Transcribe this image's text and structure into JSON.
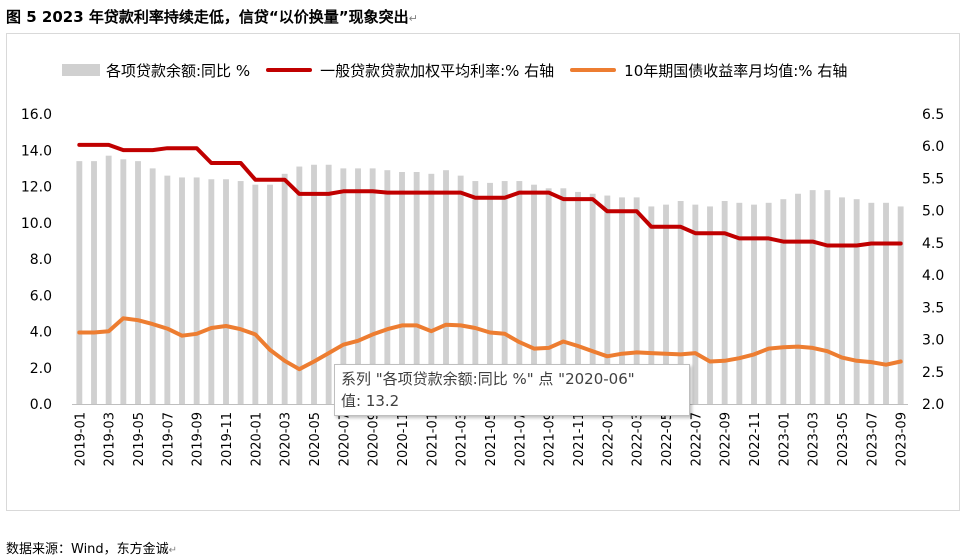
{
  "figure": {
    "title": "图 5  2023 年贷款利率持续走低，信贷“以价换量”现象突出",
    "para_mark": "↵",
    "source": "数据来源：Wind，东方金诚"
  },
  "tooltip": {
    "line1": "系列 \"各项贷款余额:同比 %\" 点 \"2020-06\"",
    "line2": "值: 13.2"
  },
  "chart_data": {
    "type": "bar",
    "x_tick_labels": [
      "2019-01",
      "2019-03",
      "2019-05",
      "2019-07",
      "2019-09",
      "2019-11",
      "2020-01",
      "2020-03",
      "2020-05",
      "2020-07",
      "2020-09",
      "2020-11",
      "2021-01",
      "2021-03",
      "2021-05",
      "2021-07",
      "2021-09",
      "2021-11",
      "2022-01",
      "2022-03",
      "2022-05",
      "2022-07",
      "2022-09",
      "2022-11",
      "2023-01",
      "2023-03",
      "2023-05",
      "2023-07",
      "2023-09"
    ],
    "categories": [
      "2019-01",
      "2019-02",
      "2019-03",
      "2019-04",
      "2019-05",
      "2019-06",
      "2019-07",
      "2019-08",
      "2019-09",
      "2019-10",
      "2019-11",
      "2019-12",
      "2020-01",
      "2020-02",
      "2020-03",
      "2020-04",
      "2020-05",
      "2020-06",
      "2020-07",
      "2020-08",
      "2020-09",
      "2020-10",
      "2020-11",
      "2020-12",
      "2021-01",
      "2021-02",
      "2021-03",
      "2021-04",
      "2021-05",
      "2021-06",
      "2021-07",
      "2021-08",
      "2021-09",
      "2021-10",
      "2021-11",
      "2021-12",
      "2022-01",
      "2022-02",
      "2022-03",
      "2022-04",
      "2022-05",
      "2022-06",
      "2022-07",
      "2022-08",
      "2022-09",
      "2022-10",
      "2022-11",
      "2022-12",
      "2023-01",
      "2023-02",
      "2023-03",
      "2023-04",
      "2023-05",
      "2023-06",
      "2023-07",
      "2023-08",
      "2023-09"
    ],
    "y_left": {
      "min": 0,
      "max": 16,
      "step": 2,
      "decimals": 1
    },
    "y_right": {
      "min": 2.0,
      "max": 6.5,
      "step": 0.5,
      "decimals": 1
    },
    "series": [
      {
        "name": "各项贷款余额:同比 %",
        "type": "bar",
        "axis": "left",
        "color": "#d0d0d0",
        "values": [
          13.4,
          13.4,
          13.7,
          13.5,
          13.4,
          13.0,
          12.6,
          12.5,
          12.5,
          12.4,
          12.4,
          12.3,
          12.1,
          12.1,
          12.7,
          13.1,
          13.2,
          13.2,
          13.0,
          13.0,
          13.0,
          12.9,
          12.8,
          12.8,
          12.7,
          12.9,
          12.6,
          12.3,
          12.2,
          12.3,
          12.3,
          12.1,
          11.9,
          11.9,
          11.7,
          11.6,
          11.5,
          11.4,
          11.4,
          10.9,
          11.0,
          11.2,
          11.0,
          10.9,
          11.2,
          11.1,
          11.0,
          11.1,
          11.3,
          11.6,
          11.8,
          11.8,
          11.4,
          11.3,
          11.1,
          11.1,
          10.9
        ]
      },
      {
        "name": "一般贷款贷款加权平均利率:% 右轴",
        "type": "line",
        "axis": "right",
        "color": "#c00000",
        "points": [
          [
            "2019-01",
            6.02
          ],
          [
            "2019-03",
            6.02
          ],
          [
            "2019-04",
            5.94
          ],
          [
            "2019-06",
            5.94
          ],
          [
            "2019-07",
            5.97
          ],
          [
            "2019-09",
            5.97
          ],
          [
            "2019-10",
            5.74
          ],
          [
            "2019-12",
            5.74
          ],
          [
            "2020-01",
            5.48
          ],
          [
            "2020-03",
            5.48
          ],
          [
            "2020-04",
            5.26
          ],
          [
            "2020-06",
            5.26
          ],
          [
            "2020-07",
            5.3
          ],
          [
            "2020-09",
            5.3
          ],
          [
            "2020-10",
            5.28
          ],
          [
            "2020-12",
            5.28
          ],
          [
            "2021-01",
            5.28
          ],
          [
            "2021-03",
            5.28
          ],
          [
            "2021-04",
            5.2
          ],
          [
            "2021-06",
            5.2
          ],
          [
            "2021-07",
            5.28
          ],
          [
            "2021-09",
            5.28
          ],
          [
            "2021-10",
            5.18
          ],
          [
            "2021-12",
            5.18
          ],
          [
            "2022-01",
            4.99
          ],
          [
            "2022-03",
            4.99
          ],
          [
            "2022-04",
            4.75
          ],
          [
            "2022-06",
            4.75
          ],
          [
            "2022-07",
            4.65
          ],
          [
            "2022-09",
            4.65
          ],
          [
            "2022-10",
            4.57
          ],
          [
            "2022-12",
            4.57
          ],
          [
            "2023-01",
            4.52
          ],
          [
            "2023-03",
            4.52
          ],
          [
            "2023-04",
            4.46
          ],
          [
            "2023-06",
            4.46
          ],
          [
            "2023-07",
            4.49
          ],
          [
            "2023-09",
            4.49
          ]
        ]
      },
      {
        "name": "10年期国债收益率月均值:% 右轴",
        "type": "line",
        "axis": "right",
        "color": "#ed7d31",
        "values": [
          3.11,
          3.11,
          3.13,
          3.33,
          3.3,
          3.24,
          3.17,
          3.06,
          3.09,
          3.18,
          3.21,
          3.16,
          3.08,
          2.84,
          2.67,
          2.54,
          2.66,
          2.79,
          2.92,
          2.98,
          3.08,
          3.16,
          3.22,
          3.22,
          3.13,
          3.23,
          3.22,
          3.18,
          3.11,
          3.09,
          2.96,
          2.86,
          2.87,
          2.97,
          2.9,
          2.82,
          2.74,
          2.78,
          2.8,
          2.79,
          2.78,
          2.77,
          2.79,
          2.66,
          2.67,
          2.71,
          2.77,
          2.86,
          2.88,
          2.89,
          2.87,
          2.82,
          2.72,
          2.67,
          2.65,
          2.61,
          2.66
        ]
      }
    ]
  }
}
